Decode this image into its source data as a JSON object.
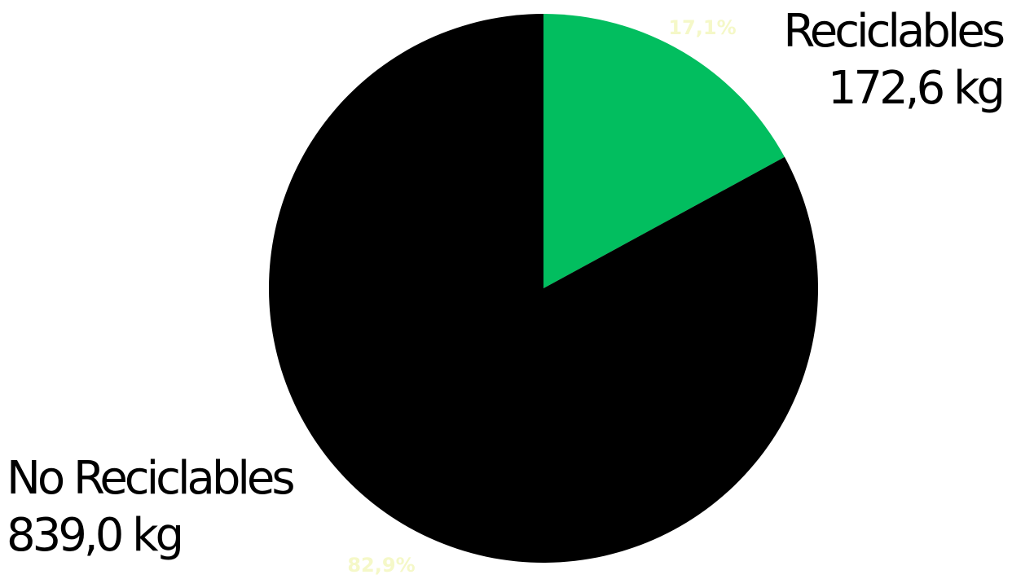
{
  "chart_data": {
    "type": "pie",
    "slices": [
      {
        "label": "Reciclables",
        "value": 172.6,
        "value_text": "172,6 kg",
        "percent_text": "17,1%",
        "color": "#02be5f"
      },
      {
        "label": "No Reciclables",
        "value": 839.0,
        "value_text": "839,0 kg",
        "percent_text": "82,9%",
        "color": "#000000"
      }
    ],
    "start": "top",
    "direction": "clockwise",
    "percent_label_color": "#f5f8c8"
  }
}
